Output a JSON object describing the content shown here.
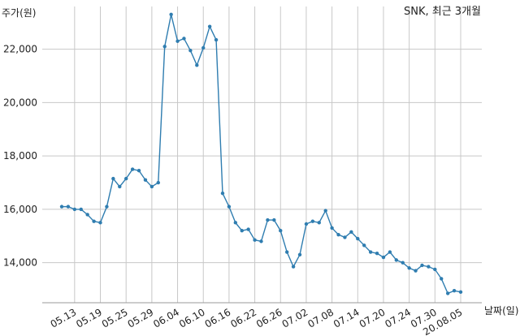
{
  "chart_data": {
    "type": "line",
    "title": "SNK, 최근 3개월",
    "xlabel": "날짜(일)",
    "ylabel": "주가(원)",
    "ylim": [
      12500,
      23600
    ],
    "yticks": [
      14000,
      16000,
      18000,
      20000,
      22000
    ],
    "ytick_labels": [
      "14,000",
      "16,000",
      "18,000",
      "20,000",
      "22,000"
    ],
    "xtick_labels": [
      "05.13",
      "05.19",
      "05.25",
      "05.29",
      "06.04",
      "06.10",
      "06.16",
      "06.22",
      "06.26",
      "07.02",
      "07.08",
      "07.14",
      "07.20",
      "07.24",
      "07.30",
      "20.08.05"
    ],
    "xtick_index": [
      2,
      6,
      10,
      14,
      18,
      22,
      26,
      30,
      34,
      38,
      42,
      46,
      50,
      54,
      58,
      62
    ],
    "grid": true,
    "series": [
      {
        "values": [
          16100,
          16100,
          16000,
          16000,
          15800,
          15550,
          15500,
          16100,
          17150,
          16850,
          17150,
          17500,
          17450,
          17100,
          16850,
          17000,
          22100,
          23300,
          22300,
          22400,
          21950,
          21400,
          22050,
          22850,
          22350,
          16600,
          16100,
          15500,
          15200,
          15250,
          14850,
          14800,
          15600,
          15600,
          15200,
          14400,
          13850,
          14300,
          15450,
          15550,
          15500,
          15950,
          15300,
          15050,
          14950,
          15150,
          14900,
          14650,
          14400,
          14350,
          14200,
          14400,
          14100,
          14000,
          13800,
          13700,
          13900,
          13850,
          13750,
          13400,
          12850,
          12950,
          12900
        ]
      }
    ]
  }
}
